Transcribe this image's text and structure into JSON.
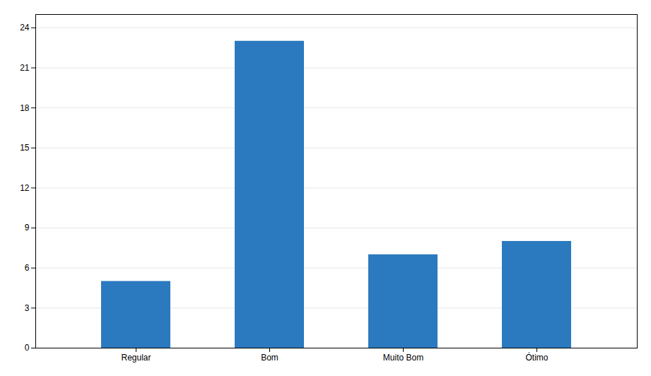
{
  "chart_data": {
    "type": "bar",
    "categories": [
      "Regular",
      "Bom",
      "Muito Bom",
      "Ótimo"
    ],
    "values": [
      5.0,
      23.0,
      7.0,
      8.0
    ],
    "color": "#2b7abf",
    "ylim": [
      0,
      25
    ],
    "yticks": [
      0,
      3,
      6,
      9,
      12,
      15,
      18,
      21,
      24
    ],
    "grid": true
  }
}
